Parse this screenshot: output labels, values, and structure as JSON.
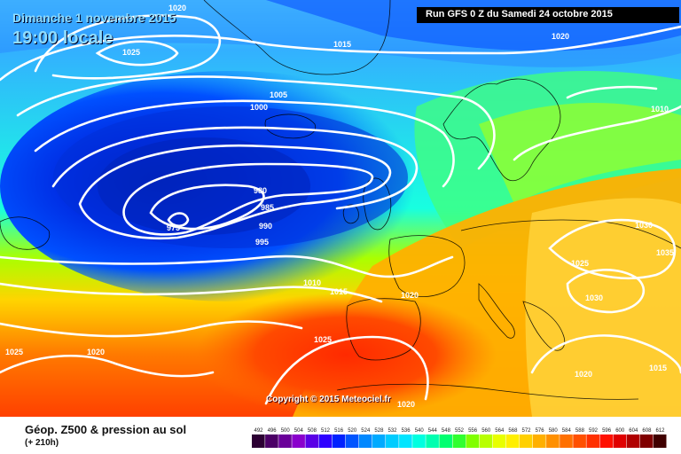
{
  "header": {
    "date": "Dimanche 1 novembre 2015",
    "time": "19:00 locale",
    "run": "Run GFS 0 Z du Samedi 24 octobre 2015"
  },
  "footer": {
    "title": "Géop. Z500 & pression au sol",
    "subtitle": "(+ 210h)",
    "copyright": "Copyright © 2015 Meteociel.fr"
  },
  "isobar_labels": [
    "1020",
    "1025",
    "1015",
    "1020",
    "1005",
    "1000",
    "1010",
    "980",
    "985",
    "990",
    "995",
    "975",
    "1010",
    "1015",
    "1020",
    "1025",
    "1020",
    "1025",
    "1030",
    "1035",
    "1030",
    "1025",
    "1020",
    "1015",
    "1020"
  ],
  "scale": {
    "values": [
      "492",
      "496",
      "500",
      "504",
      "508",
      "512",
      "516",
      "520",
      "524",
      "528",
      "532",
      "536",
      "540",
      "544",
      "548",
      "552",
      "556",
      "560",
      "564",
      "568",
      "572",
      "576",
      "580",
      "584",
      "588",
      "592",
      "596",
      "600",
      "604",
      "608",
      "612"
    ],
    "colors": [
      "#2c0033",
      "#4b0066",
      "#6a0099",
      "#8a00cc",
      "#5a00e6",
      "#2e00ff",
      "#0022ff",
      "#0055ff",
      "#0088ff",
      "#00aaff",
      "#00ccff",
      "#00e5ff",
      "#00ffe0",
      "#00ffb0",
      "#00ff70",
      "#30ff30",
      "#80ff00",
      "#b8ff00",
      "#e8ff00",
      "#ffef00",
      "#ffd000",
      "#ffb000",
      "#ff9000",
      "#ff7000",
      "#ff5000",
      "#ff3000",
      "#ff1000",
      "#e00000",
      "#b00000",
      "#800000",
      "#400000"
    ]
  }
}
